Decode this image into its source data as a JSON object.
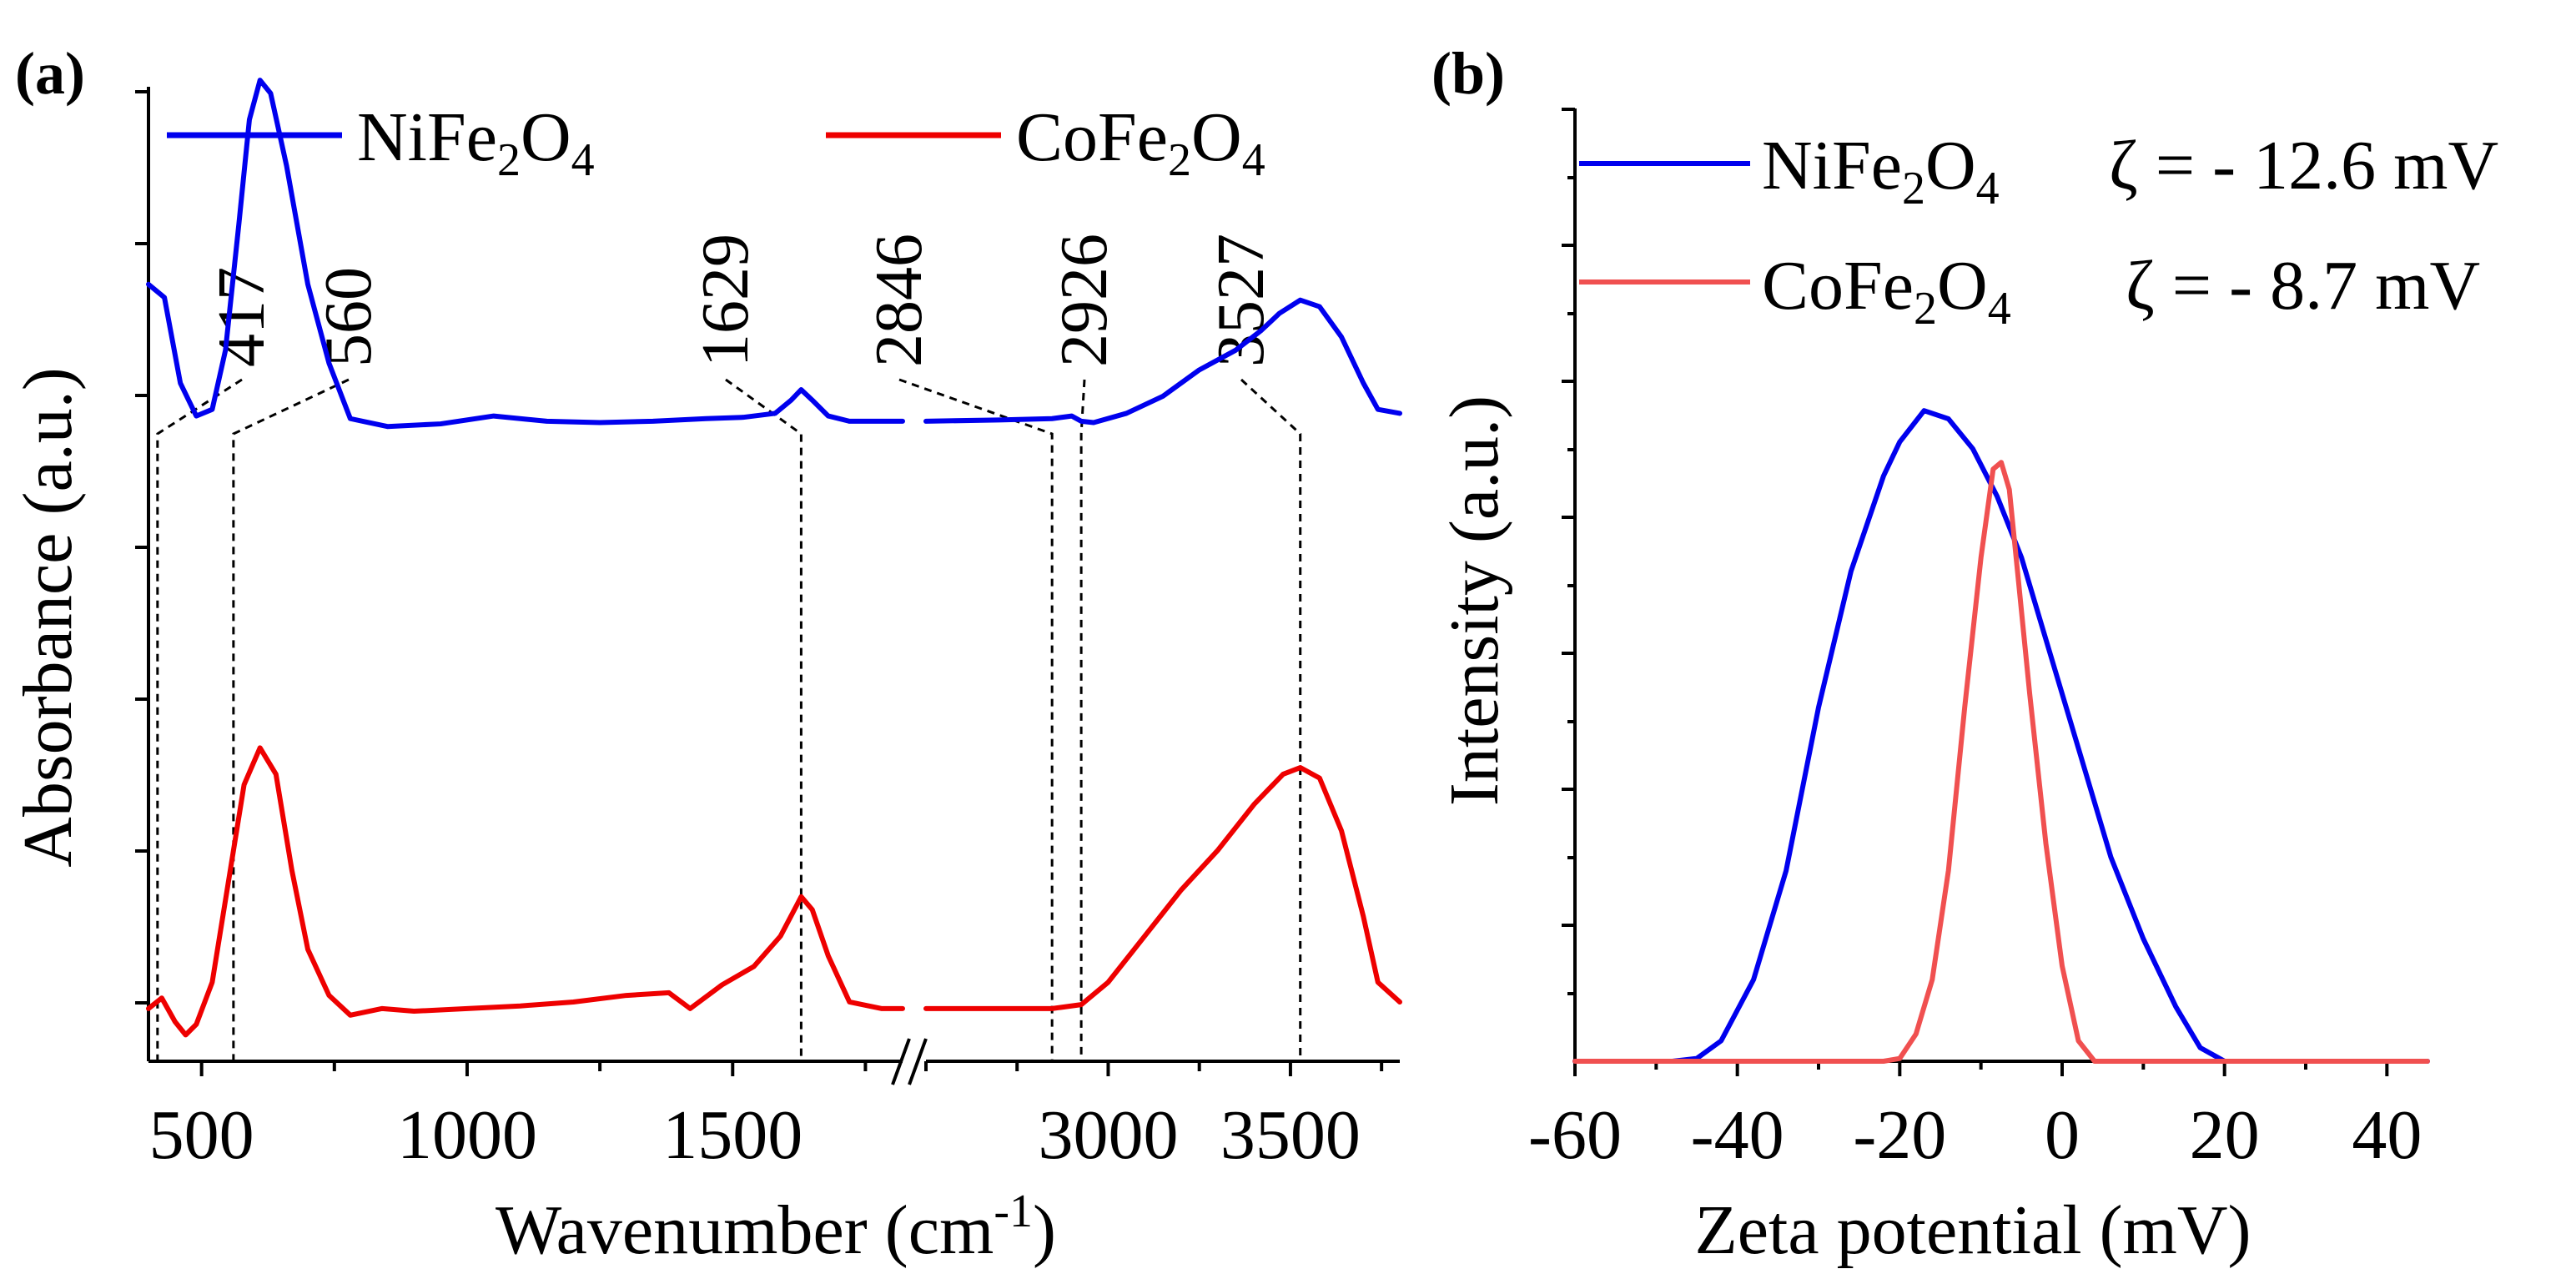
{
  "colors": {
    "nife": "#0000ee",
    "cofe": "#ee0000",
    "cofe_b": "#f05050"
  },
  "chart_data": [
    {
      "panel": "(a)",
      "type": "line",
      "xlabel_main": "Wavenumber (cm",
      "xlabel_sup": "-1",
      "xlabel_tail": ")",
      "ylabel": "Absorbance (a.u.)",
      "x_break": "//",
      "segments": [
        {
          "xlim": [
            400,
            1820
          ],
          "ticks": [
            "500",
            "1000",
            "1500"
          ],
          "tick_values": [
            500,
            1000,
            1500
          ]
        },
        {
          "xlim": [
            2500,
            3800
          ],
          "ticks": [
            "3000",
            "3500"
          ],
          "tick_values": [
            3000,
            3500
          ]
        }
      ],
      "ylim": [
        0,
        7
      ],
      "peaks": [
        {
          "label": "417",
          "x": 417
        },
        {
          "label": "560",
          "x": 560
        },
        {
          "label": "1629",
          "x": 1629
        },
        {
          "label": "2846",
          "x": 2846
        },
        {
          "label": "2926",
          "x": 2926
        },
        {
          "label": "3527",
          "x": 3527
        }
      ],
      "series": [
        {
          "name_base": "NiFe",
          "sub1": "2",
          "mid": "O",
          "sub2": "4",
          "x": [
            400,
            430,
            460,
            490,
            520,
            545,
            570,
            590,
            610,
            630,
            660,
            700,
            740,
            780,
            850,
            950,
            1050,
            1150,
            1250,
            1350,
            1450,
            1520,
            1580,
            1610,
            1629,
            1650,
            1680,
            1720,
            1780,
            1820,
            2500,
            2700,
            2846,
            2900,
            2926,
            2960,
            3050,
            3150,
            3250,
            3350,
            3420,
            3470,
            3527,
            3580,
            3640,
            3700,
            3740,
            3800
          ],
          "values": [
            2.1,
            2.0,
            1.35,
            1.1,
            1.15,
            1.6,
            2.55,
            3.35,
            3.65,
            3.55,
            3.0,
            2.1,
            1.5,
            1.08,
            1.02,
            1.04,
            1.1,
            1.06,
            1.05,
            1.06,
            1.08,
            1.09,
            1.12,
            1.22,
            1.3,
            1.22,
            1.1,
            1.06,
            1.06,
            1.06,
            1.06,
            1.07,
            1.08,
            1.1,
            1.06,
            1.05,
            1.12,
            1.25,
            1.45,
            1.6,
            1.75,
            1.88,
            1.98,
            1.93,
            1.7,
            1.35,
            1.15,
            1.12
          ]
        },
        {
          "name_base": "CoFe",
          "sub1": "2",
          "mid": "O",
          "sub2": "4",
          "x": [
            400,
            425,
            450,
            470,
            490,
            520,
            550,
            580,
            610,
            640,
            670,
            700,
            740,
            780,
            840,
            900,
            1000,
            1100,
            1200,
            1300,
            1380,
            1420,
            1480,
            1540,
            1590,
            1620,
            1629,
            1650,
            1680,
            1720,
            1780,
            1820,
            2500,
            2700,
            2846,
            2926,
            3000,
            3100,
            3200,
            3300,
            3400,
            3480,
            3527,
            3580,
            3640,
            3700,
            3740,
            3800
          ],
          "values": [
            0.0,
            0.08,
            -0.1,
            -0.2,
            -0.12,
            0.2,
            0.95,
            1.7,
            1.98,
            1.78,
            1.05,
            0.45,
            0.1,
            -0.05,
            0.0,
            -0.02,
            0.0,
            0.02,
            0.05,
            0.1,
            0.12,
            0.0,
            0.18,
            0.32,
            0.55,
            0.78,
            0.85,
            0.75,
            0.4,
            0.05,
            0.0,
            0.0,
            0.0,
            0.0,
            0.0,
            0.03,
            0.2,
            0.55,
            0.9,
            1.2,
            1.55,
            1.78,
            1.83,
            1.75,
            1.35,
            0.7,
            0.2,
            0.05
          ]
        }
      ]
    },
    {
      "panel": "(b)",
      "type": "line",
      "xlabel": "Zeta potential (mV)",
      "ylabel": "Intensity (a.u.)",
      "xlim": [
        -60,
        45
      ],
      "xticks": [
        "-60",
        "-40",
        "-20",
        "0",
        "20",
        "40"
      ],
      "xtick_values": [
        -60,
        -40,
        -20,
        0,
        20,
        40
      ],
      "ylim": [
        0,
        7
      ],
      "series": [
        {
          "name_base": "NiFe",
          "sub1": "2",
          "mid": "O",
          "sub2": "4",
          "zeta": "ζ = - 12.6 mV",
          "x": [
            -60,
            -48,
            -45,
            -42,
            -38,
            -34,
            -30,
            -26,
            -22,
            -20,
            -17,
            -14,
            -11,
            -8,
            -5,
            -2,
            2,
            6,
            10,
            14,
            17,
            20,
            45
          ],
          "values": [
            0,
            0,
            0.02,
            0.15,
            0.6,
            1.4,
            2.6,
            3.6,
            4.3,
            4.55,
            4.78,
            4.72,
            4.5,
            4.15,
            3.7,
            3.1,
            2.3,
            1.5,
            0.9,
            0.4,
            0.1,
            0.0,
            0.0
          ]
        },
        {
          "name_base": "CoFe",
          "sub1": "2",
          "mid": "O",
          "sub2": "4",
          "zeta": "ζ = - 8.7 mV",
          "x": [
            -60,
            -22,
            -20,
            -18,
            -16,
            -14,
            -12,
            -10,
            -8.5,
            -7.5,
            -6.5,
            -5.5,
            -4,
            -2,
            0,
            2,
            4,
            45
          ],
          "values": [
            0,
            0,
            0.02,
            0.2,
            0.6,
            1.4,
            2.6,
            3.7,
            4.35,
            4.4,
            4.2,
            3.6,
            2.7,
            1.6,
            0.7,
            0.15,
            0.0,
            0.0
          ]
        }
      ]
    }
  ]
}
